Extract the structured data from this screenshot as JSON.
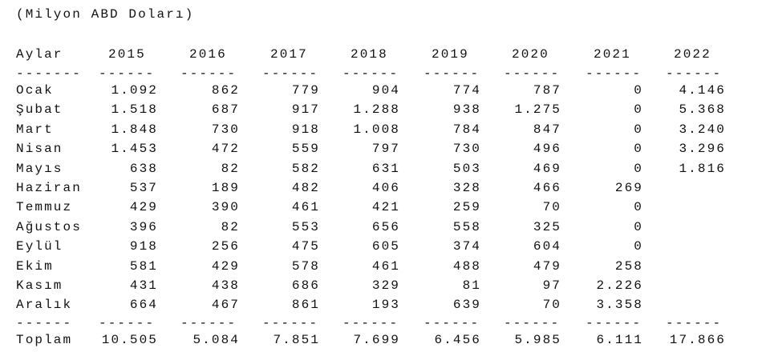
{
  "caption": "(Milyon ABD Doları)",
  "table": {
    "header": [
      "Aylar",
      "2015",
      "2016",
      "2017",
      "2018",
      "2019",
      "2020",
      "2021",
      "2022"
    ],
    "separator": [
      "-------",
      "------",
      "------",
      "------",
      "------",
      "------",
      "------",
      "------",
      "------"
    ],
    "rows": [
      [
        "Ocak",
        "1.092",
        "862",
        "779",
        "904",
        "774",
        "787",
        "0",
        "4.146"
      ],
      [
        "Şubat",
        "1.518",
        "687",
        "917",
        "1.288",
        "938",
        "1.275",
        "0",
        "5.368"
      ],
      [
        "Mart",
        "1.848",
        "730",
        "918",
        "1.008",
        "784",
        "847",
        "0",
        "3.240"
      ],
      [
        "Nisan",
        "1.453",
        "472",
        "559",
        "797",
        "730",
        "496",
        "0",
        "3.296"
      ],
      [
        "Mayıs",
        "638",
        "82",
        "582",
        "631",
        "503",
        "469",
        "0",
        "1.816"
      ],
      [
        "Haziran",
        "537",
        "189",
        "482",
        "406",
        "328",
        "466",
        "269"
      ],
      [
        "Temmuz",
        "429",
        "390",
        "461",
        "421",
        "259",
        "70",
        "0"
      ],
      [
        "Ağustos",
        "396",
        "82",
        "553",
        "656",
        "558",
        "325",
        "0"
      ],
      [
        "Eylül",
        "918",
        "256",
        "475",
        "605",
        "374",
        "604",
        "0"
      ],
      [
        "Ekim",
        "581",
        "429",
        "578",
        "461",
        "488",
        "479",
        "258"
      ],
      [
        "Kasım",
        "431",
        "438",
        "686",
        "329",
        "81",
        "97",
        "2.226"
      ],
      [
        "Aralık",
        "664",
        "467",
        "861",
        "193",
        "639",
        "70",
        "3.358"
      ]
    ],
    "total_separator": [
      "------",
      "------",
      "------",
      "------",
      "------",
      "------",
      "------",
      "------",
      "------"
    ],
    "total": [
      "Toplam",
      "10.505",
      "5.084",
      "7.851",
      "7.699",
      "6.456",
      "5.985",
      "6.111",
      "17.866"
    ]
  }
}
